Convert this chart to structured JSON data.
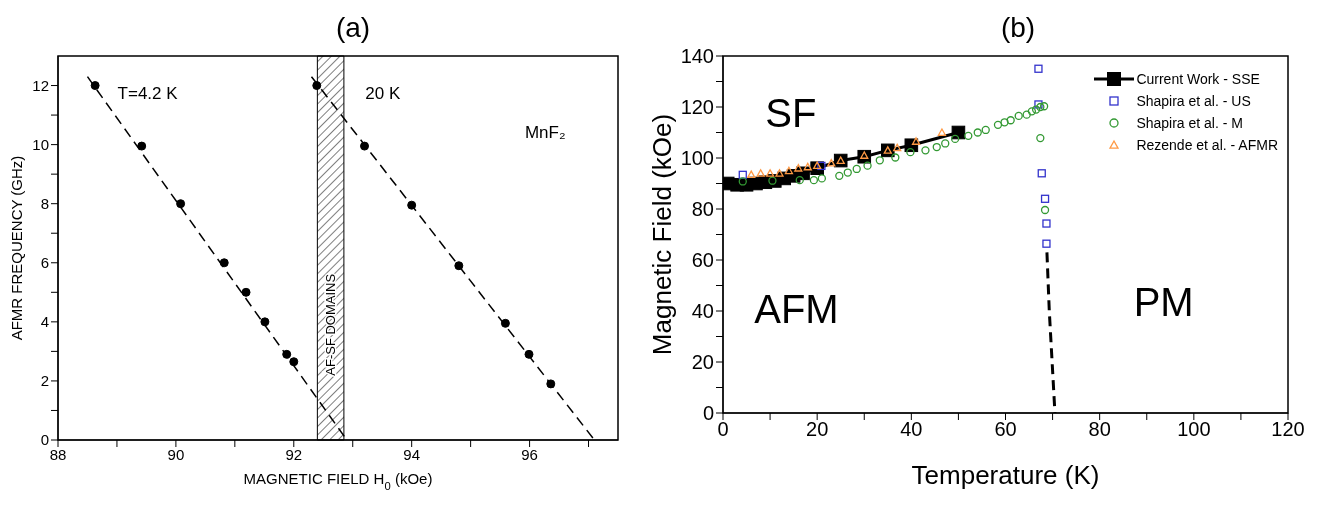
{
  "chart_data": [
    {
      "type": "scatter",
      "title": "(a)",
      "xlabel": "MAGNETIC FIELD H$_{0}$ (kOe)",
      "ylabel": "AFMR FREQUENCY (GHz)",
      "xlim": [
        88,
        97.5
      ],
      "ylim": [
        0,
        13
      ],
      "xticks": [
        88,
        {
          "value": 89,
          "label": null
        },
        90,
        {
          "value": 91,
          "label": null
        },
        92,
        {
          "value": 93,
          "label": null
        },
        94,
        {
          "value": 95,
          "label": null
        },
        96,
        {
          "value": 97,
          "label": null
        }
      ],
      "yticks": [
        0,
        {
          "value": 1,
          "label": null
        },
        2,
        {
          "value": 3,
          "label": null
        },
        4,
        {
          "value": 5,
          "label": null
        },
        6,
        {
          "value": 7,
          "label": null
        },
        8,
        {
          "value": 9,
          "label": null
        },
        10,
        {
          "value": 11,
          "label": null
        },
        12
      ],
      "marker": "circle",
      "legend": false,
      "grid": false,
      "series": [
        {
          "type": "scatter",
          "color": "#000000",
          "x": [
            88.63,
            89.42,
            90.08,
            90.82,
            91.19,
            91.51,
            91.88,
            92.0
          ],
          "values": [
            12,
            9.95,
            8,
            6,
            5,
            4,
            2.9,
            2.65
          ]
        },
        {
          "type": "scatter",
          "color": "#000000",
          "x": [
            92.39,
            93.2,
            94.0,
            94.8,
            95.59,
            95.99,
            96.36
          ],
          "values": [
            12,
            9.95,
            7.95,
            5.9,
            3.95,
            2.9,
            1.9
          ]
        },
        {
          "type": "line",
          "color": "#000000",
          "line_style": "dashed",
          "marker": "none",
          "x": [
            88.5,
            92.9
          ],
          "values": [
            12.3,
            0
          ]
        },
        {
          "type": "line",
          "color": "#000000",
          "line_style": "dashed",
          "marker": "none",
          "x": [
            92.3,
            97.1
          ],
          "values": [
            12.3,
            0
          ]
        }
      ],
      "bands": [
        {
          "axis": "x",
          "from": 92.4,
          "to": 92.85,
          "label": "AF-SF DOMAINS",
          "color": "#000000"
        }
      ],
      "annotations": [
        "T=4.2 K",
        "20 K",
        "MnF₂"
      ]
    },
    {
      "type": "scatter",
      "title": "(b)",
      "xlabel": "Temperature (K)",
      "ylabel": "Magnetic Field (kOe)",
      "xlim": [
        0,
        120
      ],
      "ylim": [
        0,
        140
      ],
      "xticks": [
        0,
        {
          "value": 10,
          "label": null
        },
        20,
        {
          "value": 30,
          "label": null
        },
        40,
        {
          "value": 50,
          "label": null
        },
        60,
        {
          "value": 70,
          "label": null
        },
        80,
        {
          "value": 90,
          "label": null
        },
        100,
        {
          "value": 110,
          "label": null
        },
        120
      ],
      "yticks": [
        0,
        {
          "value": 10,
          "label": null
        },
        20,
        {
          "value": 30,
          "label": null
        },
        40,
        {
          "value": 50,
          "label": null
        },
        60,
        {
          "value": 70,
          "label": null
        },
        80,
        {
          "value": 90,
          "label": null
        },
        100,
        {
          "value": 110,
          "label": null
        },
        120,
        {
          "value": 130,
          "label": null
        },
        140
      ],
      "legend": "top right",
      "grid": false,
      "series": [
        {
          "type": "line",
          "name": "Current Work - SSE",
          "color": "#000000",
          "marker": "square",
          "line_style": "solid",
          "x": [
            1,
            3,
            5,
            7,
            9,
            11,
            13,
            15,
            17,
            20,
            25,
            30,
            35,
            40,
            50
          ],
          "values": [
            90,
            89.5,
            89.5,
            90,
            90.5,
            91,
            92,
            93,
            94,
            96,
            99,
            100.5,
            103,
            105,
            110
          ]
        },
        {
          "type": "scatter",
          "name": "Shapira et al. - US",
          "color": "#3333cc",
          "marker": "square",
          "x": [
            4.2,
            20.9,
            67.0,
            67.0,
            67.7,
            68.4,
            68.7,
            68.7
          ],
          "values": [
            93.4,
            96.9,
            135,
            121,
            94,
            84,
            74.3,
            66.4
          ]
        },
        {
          "type": "scatter",
          "name": "Shapira et al. - M",
          "color": "#339933",
          "marker": "circle",
          "x": [
            4.2,
            10.5,
            16.3,
            19.3,
            21,
            24.7,
            26.5,
            28.4,
            30.7,
            33.3,
            36.6,
            39.8,
            43,
            45.4,
            47.2,
            49.3,
            52.1,
            54.1,
            55.8,
            58.4,
            59.8,
            61.1,
            62.8,
            64.5,
            65.6,
            66.5,
            67.4,
            68.2,
            67.4,
            68.4
          ],
          "values": [
            90.8,
            91.1,
            91.3,
            91.3,
            92,
            93,
            94.3,
            95.7,
            97,
            99.1,
            100.2,
            102.3,
            103,
            104.3,
            105.7,
            107.5,
            108.7,
            110,
            111,
            113,
            114,
            114.8,
            116.5,
            117,
            118.3,
            119,
            120,
            120.3,
            107.8,
            79.6
          ]
        },
        {
          "type": "scatter",
          "name": "Rezende et al. - AFMR",
          "color": "#ff9944",
          "marker": "triangle",
          "x": [
            6,
            8,
            10,
            12,
            14,
            16,
            18,
            20,
            23,
            25,
            30,
            35,
            37,
            41,
            46.5
          ],
          "values": [
            93.5,
            94,
            94,
            94,
            95,
            96,
            96.5,
            97,
            98,
            99,
            101,
            103,
            104,
            106.5,
            110
          ]
        },
        {
          "type": "line",
          "color": "#000000",
          "marker": "none",
          "line_style": "dashed",
          "x": [
            68.8,
            69.3,
            70.5
          ],
          "values": [
            63,
            40,
            0
          ]
        }
      ],
      "annotations": [
        "SF",
        "AFM",
        "PM"
      ]
    }
  ]
}
